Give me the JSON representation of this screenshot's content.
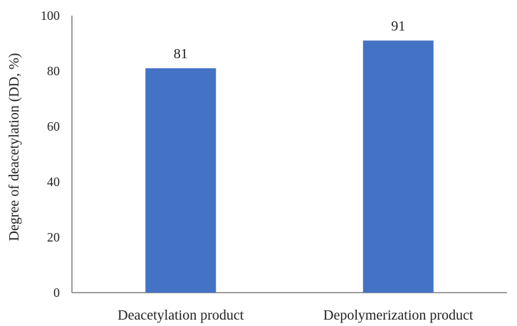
{
  "chart_data": {
    "type": "bar",
    "categories": [
      "Deacetylation product",
      "Depolymerization product"
    ],
    "values": [
      81,
      91
    ],
    "data_labels": [
      "81",
      "91"
    ],
    "title": "",
    "xlabel": "",
    "ylabel": "Degree of deacetylation (DD, %)",
    "ylim": [
      0,
      100
    ],
    "yticks": [
      0,
      20,
      40,
      60,
      80,
      100
    ],
    "grid": false,
    "legend": "none",
    "bar_color": "#4472C4",
    "axis_color": "#7f7f7f"
  }
}
